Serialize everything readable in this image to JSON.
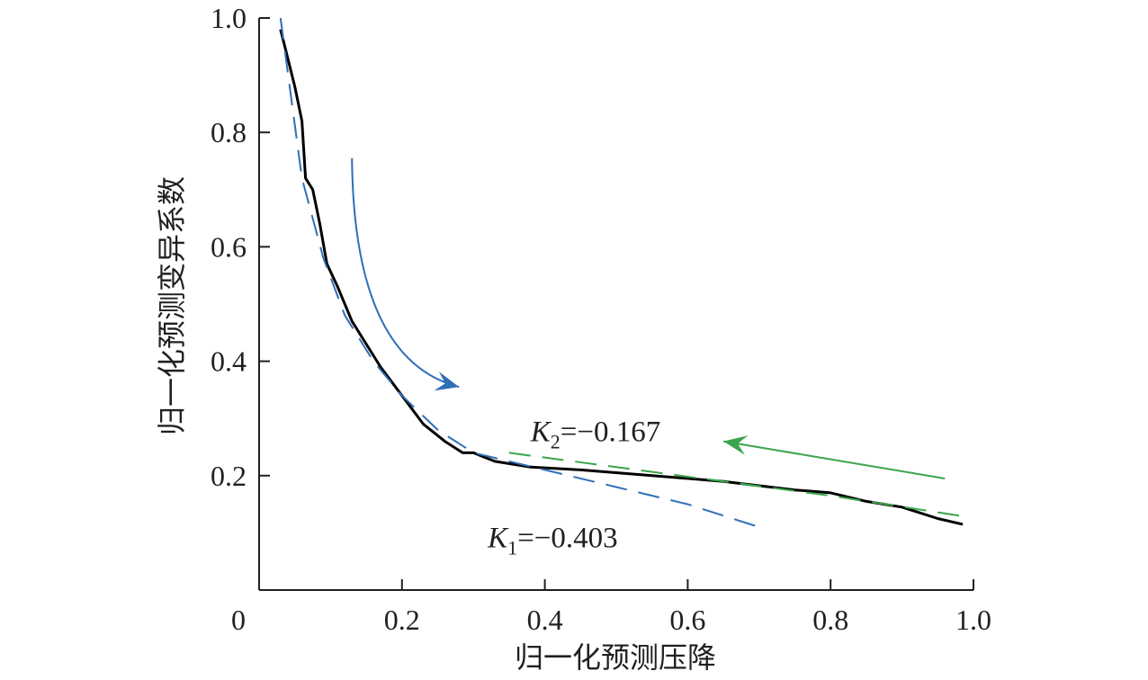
{
  "chart_data": {
    "type": "line",
    "xlabel": "归一化预测压降",
    "ylabel": "归一化预测变异系数",
    "xlim": [
      0,
      1.0
    ],
    "ylim": [
      0,
      1.0
    ],
    "x_ticks": [
      "0.2",
      "0.4",
      "0.6",
      "0.8",
      "1.0"
    ],
    "y_ticks": [
      "0.2",
      "0.4",
      "0.6",
      "0.8",
      "1.0"
    ],
    "origin_label": "0",
    "grid": false,
    "series": [
      {
        "color": "#000000",
        "style": "solid",
        "points": [
          [
            0.03,
            0.98
          ],
          [
            0.04,
            0.93
          ],
          [
            0.05,
            0.88
          ],
          [
            0.06,
            0.82
          ],
          [
            0.065,
            0.72
          ],
          [
            0.075,
            0.7
          ],
          [
            0.085,
            0.64
          ],
          [
            0.095,
            0.57
          ],
          [
            0.11,
            0.53
          ],
          [
            0.13,
            0.47
          ],
          [
            0.15,
            0.43
          ],
          [
            0.17,
            0.39
          ],
          [
            0.2,
            0.34
          ],
          [
            0.23,
            0.29
          ],
          [
            0.26,
            0.26
          ],
          [
            0.285,
            0.24
          ],
          [
            0.3,
            0.24
          ],
          [
            0.33,
            0.225
          ],
          [
            0.38,
            0.215
          ],
          [
            0.45,
            0.21
          ],
          [
            0.55,
            0.2
          ],
          [
            0.65,
            0.19
          ],
          [
            0.75,
            0.175
          ],
          [
            0.8,
            0.17
          ],
          [
            0.85,
            0.155
          ],
          [
            0.9,
            0.145
          ],
          [
            0.95,
            0.125
          ],
          [
            0.985,
            0.115
          ]
        ]
      },
      {
        "color": "#2e6fb7",
        "style": "dashed",
        "points": [
          [
            0.03,
            1.0
          ],
          [
            0.06,
            0.72
          ],
          [
            0.09,
            0.58
          ],
          [
            0.12,
            0.48
          ],
          [
            0.16,
            0.4
          ],
          [
            0.2,
            0.34
          ],
          [
            0.25,
            0.28
          ],
          [
            0.3,
            0.24
          ],
          [
            0.4,
            0.21
          ],
          [
            0.5,
            0.18
          ],
          [
            0.6,
            0.15
          ],
          [
            0.7,
            0.11
          ]
        ]
      },
      {
        "color": "#3aa64c",
        "style": "dashed",
        "points": [
          [
            0.35,
            0.24
          ],
          [
            0.5,
            0.215
          ],
          [
            0.65,
            0.19
          ],
          [
            0.8,
            0.165
          ],
          [
            0.98,
            0.13
          ]
        ]
      }
    ],
    "annotations": [
      {
        "letter": "K",
        "sub": "2",
        "value": "=−0.167",
        "at": [
          0.38,
          0.26
        ]
      },
      {
        "letter": "K",
        "sub": "1",
        "value": "=−0.403",
        "at": [
          0.32,
          0.075
        ]
      }
    ],
    "arrows": [
      {
        "color": "#2e6fb7",
        "from": [
          0.13,
          0.755
        ],
        "to": [
          0.28,
          0.355
        ],
        "curved": true
      },
      {
        "color": "#3aa64c",
        "from": [
          0.96,
          0.195
        ],
        "to": [
          0.65,
          0.26
        ],
        "curved": false
      }
    ]
  }
}
